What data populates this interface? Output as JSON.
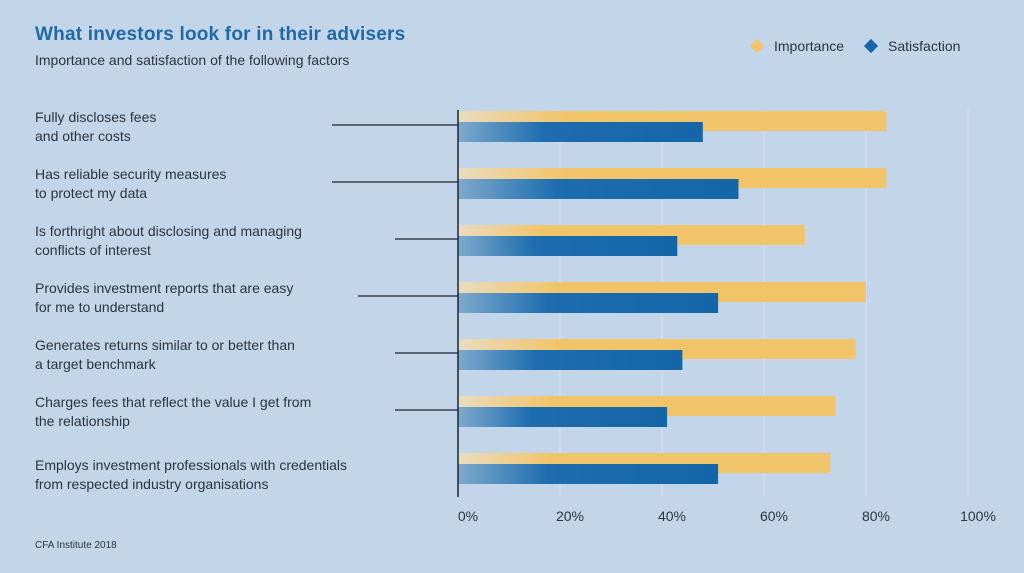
{
  "title": "What investors look for in their advisers",
  "subtitle": "Importance and satisfaction of the following factors",
  "source": "CFA Institute 2018",
  "colors": {
    "importance": "#f2c469",
    "satisfaction": "#1466a8",
    "background": "#c3d5e9",
    "title": "#1f6aa6"
  },
  "chart_data": {
    "type": "bar",
    "orientation": "horizontal",
    "categories": [
      "Fully discloses fees\nand other costs",
      "Has reliable security measures\nto protect my data",
      "Is forthright about disclosing and managing\nconflicts of interest",
      "Provides investment reports that are easy\nfor me to understand",
      "Generates returns similar to or better than\na target benchmark",
      "Charges fees that reflect the value I get from\nthe relationship",
      "Employs investment professionals with credentials\nfrom respected industry organisations"
    ],
    "series": [
      {
        "name": "Importance",
        "values": [
          84,
          84,
          68,
          80,
          78,
          74,
          73
        ]
      },
      {
        "name": "Satisfaction",
        "values": [
          48,
          55,
          43,
          51,
          44,
          41,
          51
        ]
      }
    ],
    "xlim": [
      0,
      100
    ],
    "xticks": [
      "0%",
      "20%",
      "40%",
      "60%",
      "80%",
      "100%"
    ],
    "grid": true,
    "legend": "top-right"
  }
}
